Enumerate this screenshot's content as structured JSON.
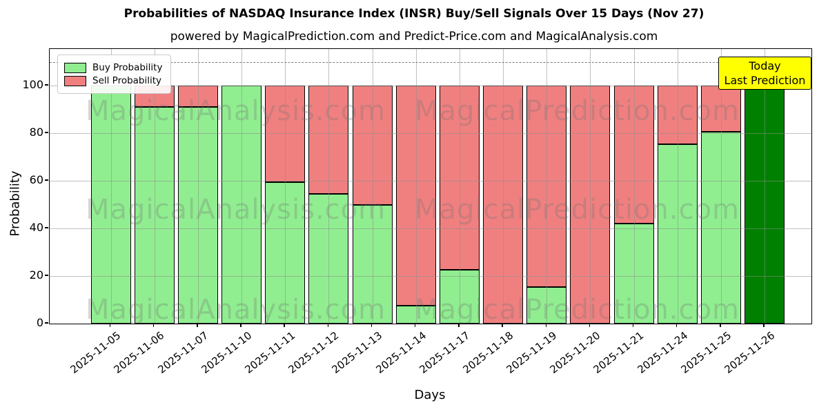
{
  "chart_data": {
    "type": "bar",
    "stacked": true,
    "title": "Probabilities of NASDAQ Insurance Index (INSR) Buy/Sell Signals Over 15 Days (Nov 27)",
    "subtitle": "powered by MagicalPrediction.com and Predict-Price.com and MagicalAnalysis.com",
    "xlabel": "Days",
    "ylabel": "Probability",
    "ylim": [
      0,
      115
    ],
    "yticks": [
      0,
      20,
      40,
      60,
      80,
      100
    ],
    "dashed_line_y": 110,
    "grid": true,
    "legend_position": "upper left",
    "categories": [
      "2025-11-05",
      "2025-11-06",
      "2025-11-07",
      "2025-11-10",
      "2025-11-11",
      "2025-11-12",
      "2025-11-13",
      "2025-11-14",
      "2025-11-17",
      "2025-11-18",
      "2025-11-19",
      "2025-11-20",
      "2025-11-21",
      "2025-11-24",
      "2025-11-25",
      "2025-11-26"
    ],
    "series": [
      {
        "name": "Buy Probability",
        "color": "#90EE90",
        "values": [
          100,
          91,
          91,
          100,
          59.5,
          54.5,
          50,
          7.5,
          22.5,
          0,
          15.5,
          0,
          42,
          75.5,
          80.5,
          100
        ]
      },
      {
        "name": "Sell Probability",
        "color": "#F08080",
        "values": [
          0,
          9,
          9,
          0,
          40.5,
          45.5,
          50,
          92.5,
          77.5,
          100,
          84.5,
          100,
          58,
          24.5,
          19.5,
          0
        ]
      }
    ],
    "today_index": 15,
    "today_color": "#008000"
  },
  "annotation": {
    "line1": "Today",
    "line2": "Last Prediction",
    "bg_color": "#FFFF00"
  },
  "watermarks": {
    "left": "MagicalAnalysis.com",
    "right": "MagicalPrediction.com"
  }
}
